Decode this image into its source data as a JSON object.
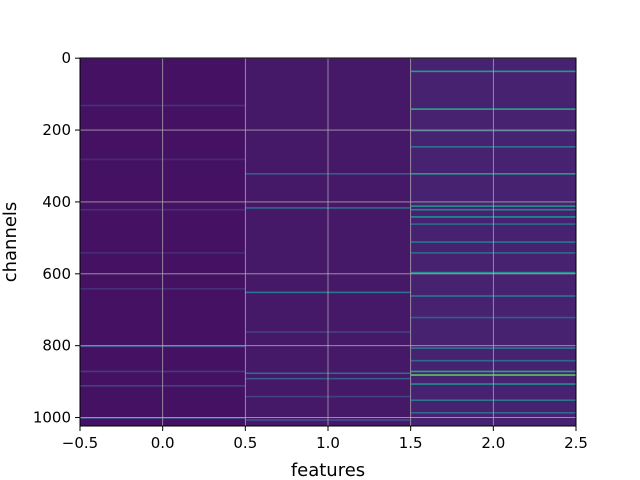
{
  "chart_data": {
    "type": "heatmap",
    "title": "",
    "xlabel": "features",
    "ylabel": "channels",
    "xlim": [
      -0.5,
      2.5
    ],
    "ylim": [
      1023.5,
      -0.5
    ],
    "x_ticks": [
      -0.5,
      0.0,
      0.5,
      1.0,
      1.5,
      2.0,
      2.5
    ],
    "x_tick_labels": [
      "−0.5",
      "0.0",
      "0.5",
      "1.0",
      "1.5",
      "2.0",
      "2.5"
    ],
    "y_ticks": [
      0,
      200,
      400,
      600,
      800,
      1000
    ],
    "y_tick_labels": [
      "0",
      "200",
      "400",
      "600",
      "800",
      "1000"
    ],
    "grid": true,
    "colormap": "viridis",
    "columns": [
      0,
      1,
      2
    ],
    "rows": 1024,
    "base_levels": [
      0.05,
      0.07,
      0.1
    ],
    "bright_rows": [
      [
        {
          "row": 130,
          "value": 0.15
        },
        {
          "row": 280,
          "value": 0.12
        },
        {
          "row": 420,
          "value": 0.14
        },
        {
          "row": 540,
          "value": 0.13
        },
        {
          "row": 640,
          "value": 0.14
        },
        {
          "row": 800,
          "value": 0.25
        },
        {
          "row": 870,
          "value": 0.18
        },
        {
          "row": 910,
          "value": 0.2
        },
        {
          "row": 1000,
          "value": 0.22
        }
      ],
      [
        {
          "row": 320,
          "value": 0.3
        },
        {
          "row": 415,
          "value": 0.35
        },
        {
          "row": 650,
          "value": 0.4
        },
        {
          "row": 760,
          "value": 0.2
        },
        {
          "row": 875,
          "value": 0.35
        },
        {
          "row": 890,
          "value": 0.3
        },
        {
          "row": 940,
          "value": 0.2
        },
        {
          "row": 1005,
          "value": 0.25
        }
      ],
      [
        {
          "row": 35,
          "value": 0.55
        },
        {
          "row": 140,
          "value": 0.6
        },
        {
          "row": 200,
          "value": 0.35
        },
        {
          "row": 245,
          "value": 0.4
        },
        {
          "row": 320,
          "value": 0.55
        },
        {
          "row": 410,
          "value": 0.5
        },
        {
          "row": 420,
          "value": 0.45
        },
        {
          "row": 440,
          "value": 0.5
        },
        {
          "row": 460,
          "value": 0.35
        },
        {
          "row": 510,
          "value": 0.4
        },
        {
          "row": 540,
          "value": 0.35
        },
        {
          "row": 595,
          "value": 0.5
        },
        {
          "row": 660,
          "value": 0.4
        },
        {
          "row": 720,
          "value": 0.3
        },
        {
          "row": 805,
          "value": 0.4
        },
        {
          "row": 840,
          "value": 0.35
        },
        {
          "row": 870,
          "value": 0.6
        },
        {
          "row": 880,
          "value": 0.75
        },
        {
          "row": 905,
          "value": 0.5
        },
        {
          "row": 950,
          "value": 0.4
        },
        {
          "row": 985,
          "value": 0.35
        }
      ]
    ]
  }
}
